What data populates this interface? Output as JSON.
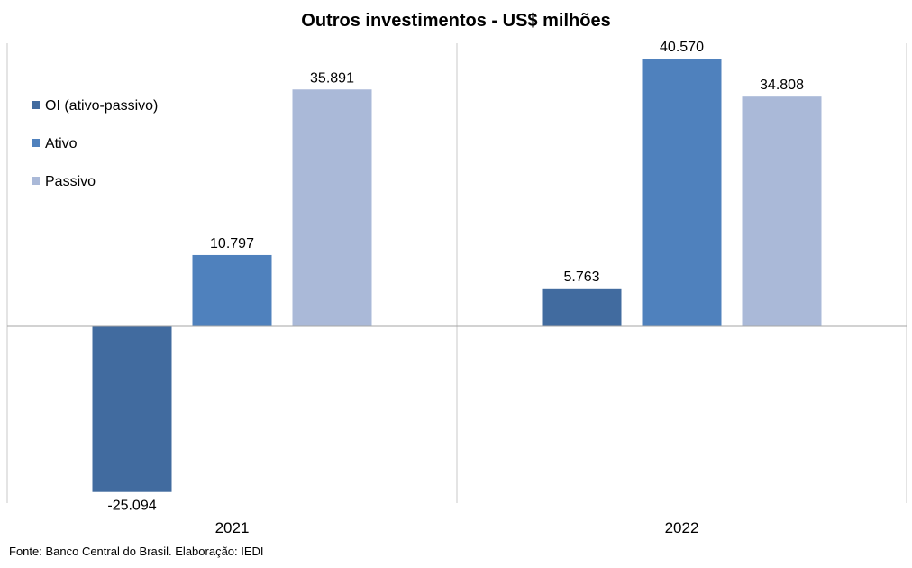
{
  "colors": {
    "OI (ativo-passivo)": "#416b9f",
    "Ativo": "#4f81bd",
    "Passivo": "#aab9d8",
    "gridline": "#c8c8c8",
    "zero_line": "#a6a6a6"
  },
  "chart_data": {
    "type": "bar",
    "title": "Outros investimentos - US$ milhões",
    "categories": [
      "2021",
      "2022"
    ],
    "series": [
      {
        "name": "OI (ativo-passivo)",
        "values": [
          -25094,
          5763
        ],
        "labels": [
          "-25.094",
          "5.763"
        ]
      },
      {
        "name": "Ativo",
        "values": [
          10797,
          40570
        ],
        "labels": [
          "10.797",
          "40.570"
        ]
      },
      {
        "name": "Passivo",
        "values": [
          35891,
          34808
        ],
        "labels": [
          "35.891",
          "34.808"
        ]
      }
    ],
    "ylim": [
      -27000,
      43000
    ],
    "grid": true,
    "legend_position": "top-left"
  },
  "footer": {
    "source": "Fonte: Banco Central do Brasil. Elaboração: IEDI"
  }
}
